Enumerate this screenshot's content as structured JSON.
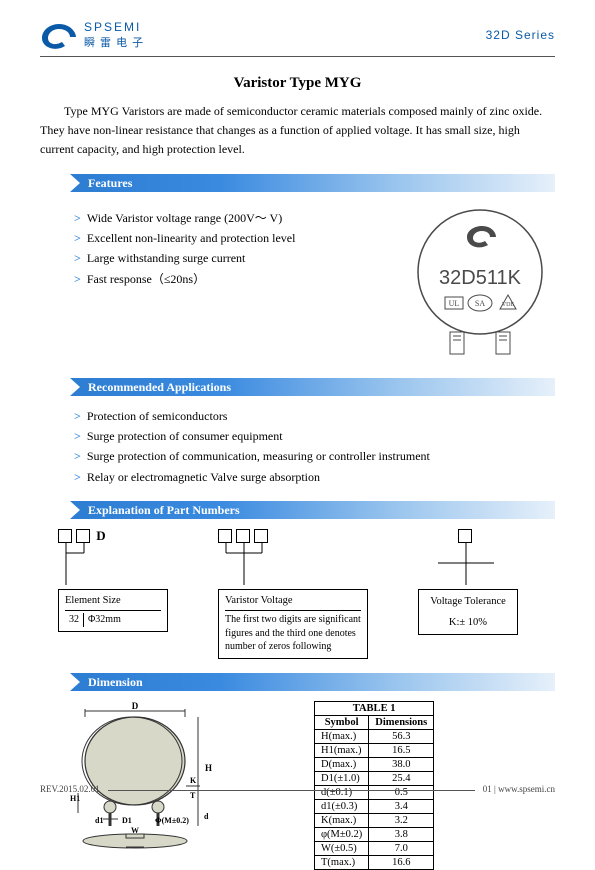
{
  "header": {
    "brand_top": "SPSEMI",
    "brand_bot": "瞬 雷 电 子",
    "series": "32D  Series",
    "logo_color": "#0a5aa8"
  },
  "title": "Varistor Type MYG",
  "intro": "Type MYG Varistors are made of semiconductor ceramic materials composed mainly of zinc oxide. They have non-linear resistance that changes as a function of applied voltage. It has small size, high current capacity, and high protection level.",
  "sections": {
    "features": {
      "label": "Features",
      "items": [
        "Wide Varistor voltage range (200V～      V)",
        "Excellent non-linearity and protection level",
        "Large withstanding surge current",
        "Fast response（≤20ns）"
      ]
    },
    "apps": {
      "label": "Recommended Applications",
      "items": [
        "Protection of semiconductors",
        "Surge protection of consumer equipment",
        "Surge protection of communication, measuring or controller instrument",
        "Relay or electromagnetic Valve surge absorption"
      ]
    },
    "part": {
      "label": "Explanation of Part Numbers"
    },
    "dim": {
      "label": "Dimension"
    }
  },
  "component": {
    "marking": "32D511K",
    "body_fill": "#ffffff",
    "body_stroke": "#4a4a4a",
    "logo_fill": "#4a4a4a"
  },
  "part_numbers": {
    "element": {
      "title": "Element Size",
      "code": "32",
      "value": "Φ32mm"
    },
    "voltage": {
      "title": "Varistor Voltage",
      "desc": "The first two digits are significant figures and the third one denotes number of zeros following"
    },
    "tolerance": {
      "title": "Voltage Tolerance",
      "value": "K:± 10%"
    }
  },
  "dim_table": {
    "caption": "TABLE 1",
    "head": [
      "Symbol",
      "Dimensions"
    ],
    "rows": [
      [
        "H(max.)",
        "56.3"
      ],
      [
        "H1(max.)",
        "16.5"
      ],
      [
        "D(max.)",
        "38.0"
      ],
      [
        "D1(±1.0)",
        "25.4"
      ],
      [
        "d(±0.1)",
        "0.5"
      ],
      [
        "d1(±0.3)",
        "3.4"
      ],
      [
        "K(max.)",
        "3.2"
      ],
      [
        "φ(M±0.2)",
        "3.8"
      ],
      [
        "W(±0.5)",
        "7.0"
      ],
      [
        "T(max.)",
        "16.6"
      ]
    ]
  },
  "dim_drawing": {
    "labels": [
      "D",
      "H",
      "K",
      "T",
      "d",
      "H1",
      "d1",
      "D1",
      "Φ(M±0.2)",
      "W"
    ],
    "stroke": "#333",
    "fill": "#d8d8c8"
  },
  "footer": {
    "rev": "REV.2015.02.01",
    "page": "01 | www.spsemi.cn"
  },
  "colors": {
    "bar_gradient_left": "#2a7bd0",
    "bar_gradient_right": "#e6f0fa",
    "rule": "#555"
  }
}
